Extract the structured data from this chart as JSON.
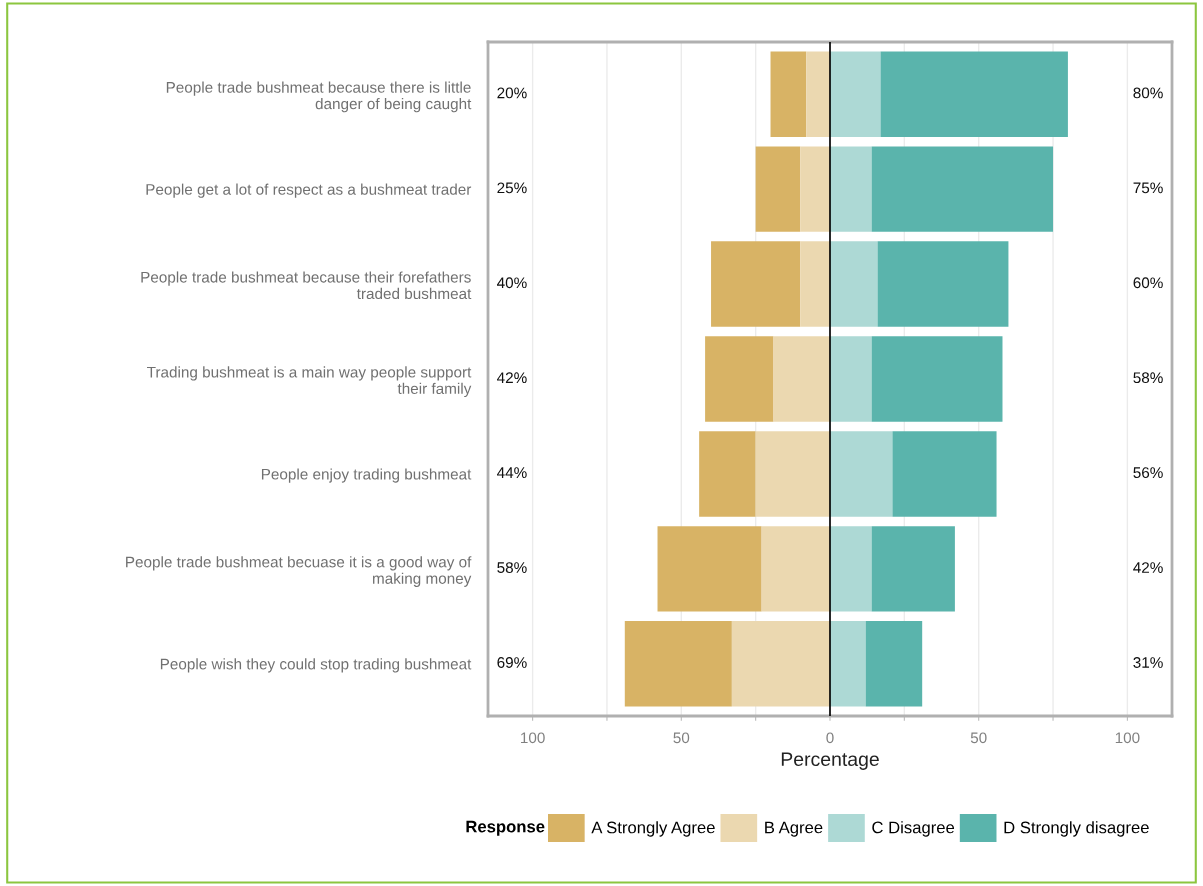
{
  "chart_data": {
    "type": "bar",
    "orientation": "horizontal",
    "categories": [
      "People trade bushmeat because there is little\ndanger of being caught",
      "People get a lot of respect as a bushmeat trader",
      "People trade bushmeat because their forefathers\ntraded bushmeat",
      "Trading bushmeat is a main way people support\ntheir family",
      "People enjoy trading bushmeat",
      "People trade bushmeat becuase it is a good way of\nmaking money",
      "People wish they could stop trading bushmeat"
    ],
    "series": [
      {
        "name": "A Strongly Agree",
        "color": "#d8b365",
        "base": [
          -20,
          -25,
          -40,
          -42,
          -44,
          -58,
          -69
        ],
        "values": [
          12,
          15,
          30,
          23,
          19,
          35,
          36
        ]
      },
      {
        "name": "B Agree",
        "color": "#ebd8b0",
        "base": [
          -8,
          -10,
          -10,
          -19,
          -25,
          -23,
          -33
        ],
        "values": [
          8,
          10,
          10,
          19,
          25,
          23,
          33
        ]
      },
      {
        "name": "C Disagree",
        "color": "#add9d5",
        "base": [
          0,
          0,
          0,
          0,
          0,
          0,
          0
        ],
        "values": [
          17,
          14,
          16,
          14,
          21,
          14,
          12
        ]
      },
      {
        "name": "D Strongly disagree",
        "color": "#5ab4ac",
        "base": [
          17,
          14,
          16,
          14,
          21,
          14,
          12
        ],
        "values": [
          63,
          61,
          44,
          44,
          35,
          28,
          19
        ]
      }
    ],
    "xlim": [
      -115,
      115
    ],
    "xticks": [
      {
        "value": -100,
        "label": "100"
      },
      {
        "value": -75,
        "label": null
      },
      {
        "value": -50,
        "label": "50"
      },
      {
        "value": -25,
        "label": null
      },
      0,
      {
        "value": 25,
        "label": null
      },
      50,
      {
        "value": 75,
        "label": null
      },
      100
    ],
    "xlabel": "Percentage",
    "legend_title": "Response",
    "legend": "bottom",
    "grid": "x",
    "ref_lines": [
      {
        "axis": "x",
        "value": 0,
        "color": "#000000"
      }
    ],
    "annotations": [
      "20%",
      "25%",
      "40%",
      "42%",
      "44%",
      "58%",
      "69%",
      "80%",
      "75%",
      "60%",
      "58%",
      "56%",
      "42%",
      "31%"
    ]
  }
}
